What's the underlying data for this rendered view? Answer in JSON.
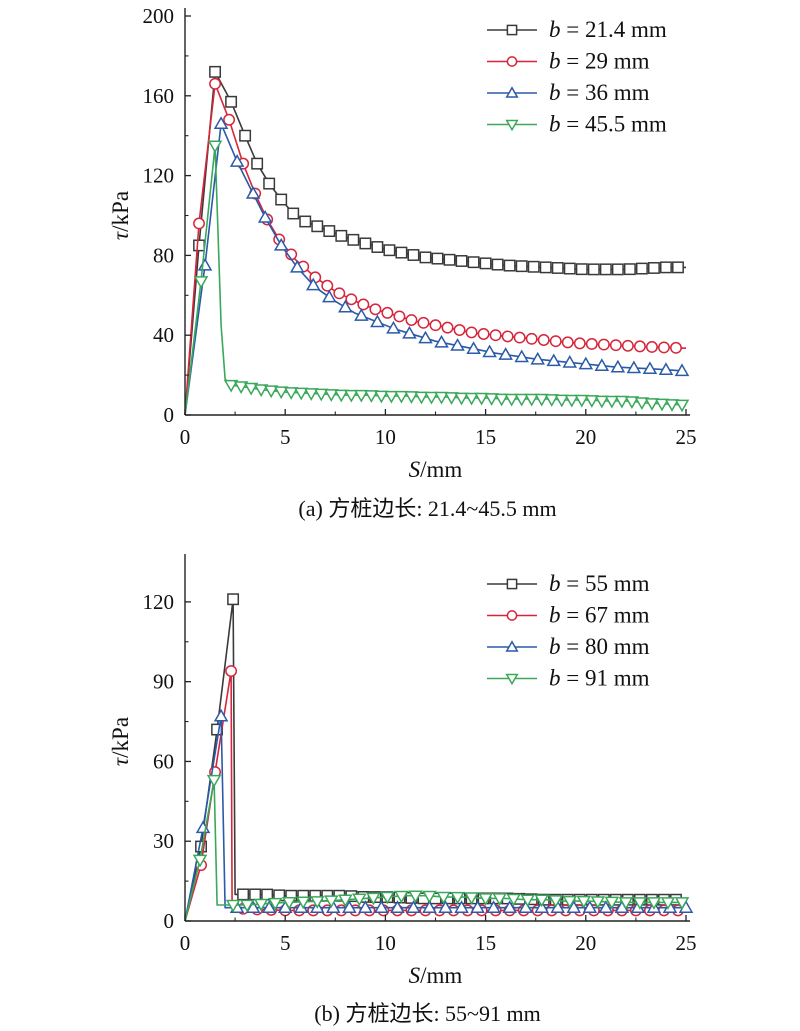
{
  "chart_data": [
    {
      "type": "line",
      "caption": "(a) 方桩边长: 21.4~45.5 mm",
      "xlabel_italic": "S",
      "xlabel_unit": "/mm",
      "ylabel_italic": "τ",
      "ylabel_unit": "/kPa",
      "xlim": [
        0,
        25
      ],
      "ylim": [
        0,
        200
      ],
      "xticks": [
        0,
        5,
        10,
        15,
        20,
        25
      ],
      "yticks": [
        0,
        40,
        80,
        120,
        160,
        200
      ],
      "grid": false,
      "legend_position": "top-right",
      "series": [
        {
          "legend_var": "b",
          "legend_value": " = 21.4 mm",
          "color": "#3a3a3a",
          "marker": "square",
          "points": [
            [
              0,
              0
            ],
            [
              0.7,
              85
            ],
            [
              1.5,
              172
            ],
            [
              2.3,
              157
            ],
            [
              3.0,
              140
            ],
            [
              3.6,
              126
            ],
            [
              4.2,
              116
            ],
            [
              4.8,
              108
            ],
            [
              5.4,
              101
            ],
            [
              6.0,
              97
            ],
            [
              7.0,
              93
            ],
            [
              8.0,
              89
            ],
            [
              9.0,
              86
            ],
            [
              10.0,
              83
            ],
            [
              11.0,
              81
            ],
            [
              12.0,
              79
            ],
            [
              13.0,
              78
            ],
            [
              14.0,
              77
            ],
            [
              15.0,
              76
            ],
            [
              16.0,
              75
            ],
            [
              17.0,
              74.5
            ],
            [
              18.0,
              74
            ],
            [
              19.0,
              73.5
            ],
            [
              20.0,
              73
            ],
            [
              21.0,
              73
            ],
            [
              22.0,
              73
            ],
            [
              23.0,
              73.5
            ],
            [
              24.0,
              74
            ],
            [
              25.0,
              74
            ]
          ],
          "marker_x": [
            0.7,
            1.5,
            2.3,
            3.0,
            3.6,
            4.2,
            4.8,
            5.4,
            6.0,
            6.6,
            7.2,
            7.8,
            8.4,
            9.0,
            9.6,
            10.2,
            10.8,
            11.4,
            12.0,
            12.6,
            13.2,
            13.8,
            14.4,
            15.0,
            15.6,
            16.2,
            16.8,
            17.4,
            18.0,
            18.6,
            19.2,
            19.8,
            20.4,
            21.0,
            21.6,
            22.2,
            22.8,
            23.4,
            24.0,
            24.6
          ]
        },
        {
          "legend_var": "b",
          "legend_value": " = 29 mm",
          "color": "#d6263b",
          "marker": "circle",
          "points": [
            [
              0,
              0
            ],
            [
              0.7,
              96
            ],
            [
              1.5,
              166
            ],
            [
              2.2,
              148
            ],
            [
              2.9,
              126
            ],
            [
              3.5,
              111
            ],
            [
              4.1,
              98
            ],
            [
              4.7,
              88
            ],
            [
              5.5,
              78
            ],
            [
              6.5,
              69
            ],
            [
              7.5,
              62
            ],
            [
              8.5,
              57
            ],
            [
              9.5,
              53
            ],
            [
              10.5,
              50
            ],
            [
              11.5,
              47
            ],
            [
              12.5,
              45
            ],
            [
              13.5,
              43
            ],
            [
              14.5,
              41
            ],
            [
              15.5,
              40
            ],
            [
              16.5,
              39
            ],
            [
              17.5,
              38
            ],
            [
              18.5,
              37
            ],
            [
              19.5,
              36
            ],
            [
              20.5,
              35.5
            ],
            [
              21.5,
              35
            ],
            [
              22.5,
              34.5
            ],
            [
              23.5,
              34
            ],
            [
              25,
              33.5
            ]
          ],
          "marker_x": [
            0.7,
            1.5,
            2.2,
            2.9,
            3.5,
            4.1,
            4.7,
            5.3,
            5.9,
            6.5,
            7.1,
            7.7,
            8.3,
            8.9,
            9.5,
            10.1,
            10.7,
            11.3,
            11.9,
            12.5,
            13.1,
            13.7,
            14.3,
            14.9,
            15.5,
            16.1,
            16.7,
            17.3,
            17.9,
            18.5,
            19.1,
            19.7,
            20.3,
            20.9,
            21.5,
            22.1,
            22.7,
            23.3,
            23.9,
            24.5
          ]
        },
        {
          "legend_var": "b",
          "legend_value": " = 36 mm",
          "color": "#2a5aa8",
          "marker": "triangle-up",
          "points": [
            [
              0,
              0
            ],
            [
              1.0,
              75
            ],
            [
              1.8,
              146
            ],
            [
              2.6,
              127
            ],
            [
              3.4,
              111
            ],
            [
              4.0,
              99
            ],
            [
              4.8,
              85
            ],
            [
              5.6,
              74
            ],
            [
              6.5,
              64
            ],
            [
              7.5,
              57
            ],
            [
              8.5,
              51
            ],
            [
              9.5,
              47
            ],
            [
              10.5,
              43
            ],
            [
              11.5,
              40
            ],
            [
              12.5,
              37
            ],
            [
              13.5,
              35
            ],
            [
              14.5,
              33
            ],
            [
              15.5,
              31
            ],
            [
              16.5,
              29.5
            ],
            [
              17.5,
              28
            ],
            [
              18.5,
              27
            ],
            [
              19.5,
              26
            ],
            [
              20.5,
              25
            ],
            [
              21.5,
              24
            ],
            [
              22.5,
              23.5
            ],
            [
              23.5,
              23
            ],
            [
              25,
              22
            ]
          ],
          "marker_x": [
            1.0,
            1.8,
            2.6,
            3.4,
            4.0,
            4.8,
            5.6,
            6.4,
            7.2,
            8.0,
            8.8,
            9.6,
            10.4,
            11.2,
            12.0,
            12.8,
            13.6,
            14.4,
            15.2,
            16.0,
            16.8,
            17.6,
            18.4,
            19.2,
            20.0,
            20.8,
            21.6,
            22.4,
            23.2,
            24.0,
            24.8
          ]
        },
        {
          "legend_var": "b",
          "legend_value": " = 45.5 mm",
          "color": "#3aa85a",
          "marker": "triangle-down",
          "points": [
            [
              0,
              0
            ],
            [
              0.8,
              67
            ],
            [
              1.5,
              135
            ],
            [
              1.8,
              45
            ],
            [
              2.0,
              18
            ],
            [
              2.3,
              15
            ],
            [
              3,
              14
            ],
            [
              4,
              12.5
            ],
            [
              5,
              11.5
            ],
            [
              6,
              11
            ],
            [
              7,
              10.5
            ],
            [
              8,
              10
            ],
            [
              9,
              10
            ],
            [
              10,
              9.5
            ],
            [
              11,
              9.5
            ],
            [
              12,
              9
            ],
            [
              13,
              9
            ],
            [
              14,
              8.5
            ],
            [
              15,
              8.5
            ],
            [
              16,
              8
            ],
            [
              17,
              8
            ],
            [
              18,
              8
            ],
            [
              19,
              7.5
            ],
            [
              20,
              7.5
            ],
            [
              21,
              7
            ],
            [
              22,
              7
            ],
            [
              22.6,
              6.5
            ],
            [
              23,
              6
            ],
            [
              24,
              5.5
            ],
            [
              25,
              5
            ]
          ],
          "marker_x": [
            0.8,
            1.5,
            2.3,
            2.8,
            3.3,
            3.8,
            4.3,
            4.8,
            5.3,
            5.8,
            6.3,
            6.8,
            7.3,
            7.8,
            8.3,
            8.8,
            9.3,
            9.8,
            10.3,
            10.8,
            11.3,
            11.8,
            12.3,
            12.8,
            13.3,
            13.8,
            14.3,
            14.8,
            15.3,
            15.8,
            16.3,
            16.8,
            17.3,
            17.8,
            18.3,
            18.8,
            19.3,
            19.8,
            20.3,
            20.8,
            21.3,
            21.8,
            22.3,
            22.8,
            23.3,
            23.8,
            24.3,
            24.8
          ]
        }
      ]
    },
    {
      "type": "line",
      "caption": "(b) 方桩边长: 55~91 mm",
      "xlabel_italic": "S",
      "xlabel_unit": "/mm",
      "ylabel_italic": "τ",
      "ylabel_unit": "/kPa",
      "xlim": [
        0,
        25
      ],
      "ylim": [
        0,
        135
      ],
      "xticks": [
        0,
        5,
        10,
        15,
        20,
        25
      ],
      "yticks": [
        0,
        30,
        60,
        90,
        120
      ],
      "grid": false,
      "legend_position": "top-right",
      "series": [
        {
          "legend_var": "b",
          "legend_value": " = 55 mm",
          "color": "#3a3a3a",
          "marker": "square",
          "points": [
            [
              0,
              0
            ],
            [
              0.8,
              28
            ],
            [
              1.6,
              72
            ],
            [
              2.4,
              121
            ],
            [
              2.5,
              10
            ],
            [
              3,
              10
            ],
            [
              4,
              10
            ],
            [
              5,
              9.5
            ],
            [
              6,
              9.5
            ],
            [
              7,
              9.5
            ],
            [
              8,
              9.5
            ],
            [
              9,
              9
            ],
            [
              10,
              9
            ],
            [
              12,
              8.5
            ],
            [
              14,
              8.5
            ],
            [
              16,
              8.5
            ],
            [
              18,
              8
            ],
            [
              20,
              8
            ],
            [
              22,
              8
            ],
            [
              25,
              8
            ]
          ],
          "marker_x": [
            0.8,
            1.6,
            2.4,
            2.9,
            3.5,
            4.1,
            4.7,
            5.3,
            5.9,
            6.5,
            7.1,
            7.7,
            8.3,
            8.9,
            9.5,
            10.1,
            10.7,
            11.3,
            11.9,
            12.5,
            13.1,
            13.7,
            14.3,
            14.9,
            15.5,
            16.1,
            16.7,
            17.3,
            17.9,
            18.5,
            19.1,
            19.7,
            20.3,
            20.9,
            21.5,
            22.1,
            22.7,
            23.3,
            23.9,
            24.5
          ]
        },
        {
          "legend_var": "b",
          "legend_value": " = 67 mm",
          "color": "#d6263b",
          "marker": "circle",
          "points": [
            [
              0,
              0
            ],
            [
              0.8,
              21
            ],
            [
              1.5,
              56
            ],
            [
              2.3,
              94
            ],
            [
              2.35,
              5
            ],
            [
              3,
              4.5
            ],
            [
              5,
              4
            ],
            [
              8,
              4
            ],
            [
              10,
              4
            ],
            [
              13,
              4
            ],
            [
              16,
              4
            ],
            [
              20,
              4
            ],
            [
              25,
              4
            ]
          ],
          "marker_x": [
            0.8,
            1.5,
            2.3,
            2.9,
            3.6,
            4.3,
            5.0,
            5.7,
            6.4,
            7.1,
            7.8,
            8.5,
            9.2,
            9.9,
            10.6,
            11.3,
            12.0,
            12.7,
            13.4,
            14.1,
            14.8,
            15.5,
            16.2,
            16.9,
            17.6,
            18.3,
            19.0,
            19.7,
            20.4,
            21.1,
            21.8,
            22.5,
            23.2,
            23.9,
            24.6
          ]
        },
        {
          "legend_var": "b",
          "legend_value": " = 80 mm",
          "color": "#2a5aa8",
          "marker": "triangle-up",
          "points": [
            [
              0,
              0
            ],
            [
              0.9,
              35
            ],
            [
              1.8,
              77
            ],
            [
              2.0,
              5
            ],
            [
              3,
              5
            ],
            [
              5,
              5
            ],
            [
              8,
              5
            ],
            [
              10,
              5
            ],
            [
              13,
              5
            ],
            [
              16,
              5
            ],
            [
              20,
              5
            ],
            [
              25,
              5
            ]
          ],
          "marker_x": [
            0.9,
            1.8,
            2.6,
            3.4,
            4.2,
            5.0,
            5.8,
            6.6,
            7.4,
            8.2,
            9.0,
            9.8,
            10.6,
            11.4,
            12.2,
            13.0,
            13.8,
            14.6,
            15.4,
            16.2,
            17.0,
            17.8,
            18.6,
            19.4,
            20.2,
            21.0,
            21.8,
            22.6,
            23.4,
            24.2,
            25.0
          ]
        },
        {
          "legend_var": "b",
          "legend_value": " = 91 mm",
          "color": "#3aa85a",
          "marker": "triangle-down",
          "points": [
            [
              0,
              0
            ],
            [
              0.75,
              23
            ],
            [
              1.45,
              53
            ],
            [
              1.6,
              6
            ],
            [
              3,
              6
            ],
            [
              5,
              7
            ],
            [
              7,
              7.5
            ],
            [
              9,
              8.5
            ],
            [
              10,
              9
            ],
            [
              11,
              9.5
            ],
            [
              12,
              9.5
            ],
            [
              13,
              9
            ],
            [
              14,
              9
            ],
            [
              15,
              8.5
            ],
            [
              16,
              8.5
            ],
            [
              17,
              8
            ],
            [
              18,
              8
            ],
            [
              19,
              7.5
            ],
            [
              20,
              7.5
            ],
            [
              22,
              7
            ],
            [
              25,
              7
            ]
          ],
          "marker_x": [
            0.75,
            1.45,
            2.4,
            3.1,
            3.8,
            4.5,
            5.2,
            5.9,
            6.6,
            7.3,
            8.0,
            8.7,
            9.4,
            10.1,
            10.8,
            11.5,
            12.2,
            12.9,
            13.6,
            14.3,
            15.0,
            15.7,
            16.4,
            17.1,
            17.8,
            18.5,
            19.2,
            19.9,
            20.6,
            21.3,
            22.0,
            22.7,
            23.4,
            24.1,
            24.8
          ]
        }
      ]
    }
  ]
}
